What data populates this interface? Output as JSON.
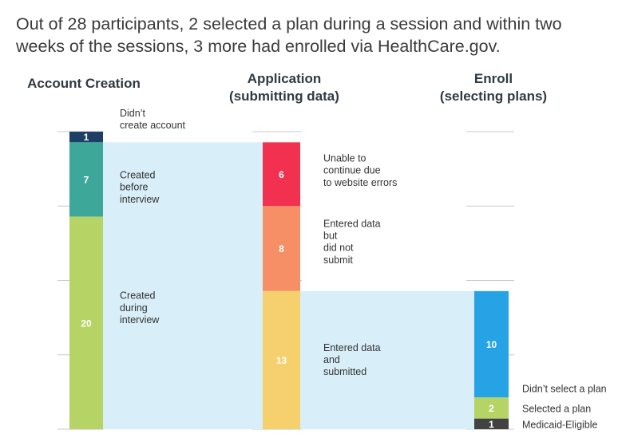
{
  "headline": "Out of 28 participants, 2 selected a plan during a session and within two weeks of the sessions, 3 more had enrolled via HealthCare.gov.",
  "colors": {
    "flow": "#d8eef8",
    "grid": "#c8c8c8",
    "navy": "#1d3f66",
    "teal": "#3da79a",
    "lime": "#b6d365",
    "red": "#f2304f",
    "orange": "#f68f66",
    "yellow": "#f7d06e",
    "blue": "#26a3e4",
    "gray": "#424242"
  },
  "chart_data": {
    "type": "bar",
    "total": 28,
    "columns": [
      {
        "title": [
          "Account Creation"
        ],
        "segments": [
          {
            "value": 1,
            "label": [
              "Didn’t",
              "create account"
            ],
            "color": "#1d3f66"
          },
          {
            "value": 7,
            "label": [
              "Created",
              "before",
              "interview"
            ],
            "color": "#3da79a"
          },
          {
            "value": 20,
            "label": [
              "Created",
              "during",
              "interview"
            ],
            "color": "#b6d365"
          }
        ]
      },
      {
        "title": [
          "Application",
          "(submitting data)"
        ],
        "segments": [
          {
            "value": 6,
            "label": [
              "Unable to",
              "continue due",
              "to website errors"
            ],
            "color": "#f2304f"
          },
          {
            "value": 8,
            "label": [
              "Entered data",
              "but",
              "did not",
              "submit"
            ],
            "color": "#f68f66"
          },
          {
            "value": 13,
            "label": [
              "Entered data",
              "and",
              "submitted"
            ],
            "color": "#f7d06e"
          }
        ]
      },
      {
        "title": [
          "Enroll",
          "(selecting plans)"
        ],
        "segments": [
          {
            "value": 10,
            "label": [
              "Didn’t select a plan"
            ],
            "color": "#26a3e4"
          },
          {
            "value": 2,
            "label": [
              "Selected a plan"
            ],
            "color": "#b6d365"
          },
          {
            "value": 1,
            "label": [
              "Medicaid-Eligible"
            ],
            "color": "#424242"
          }
        ]
      }
    ]
  }
}
